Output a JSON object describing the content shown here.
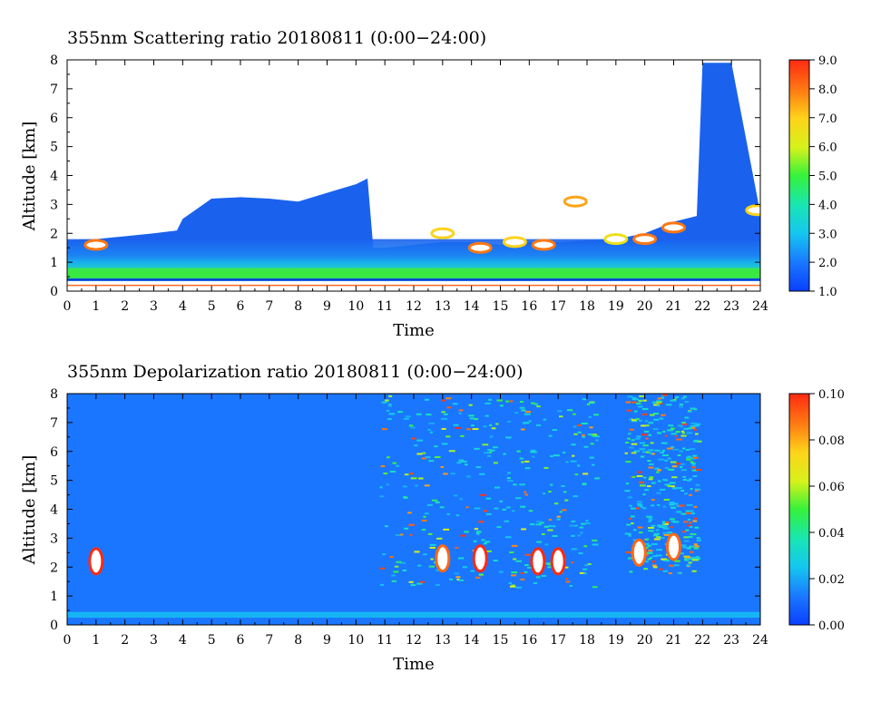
{
  "chart_data": [
    {
      "type": "heatmap",
      "title": "355nm Scattering ratio  20180811 (0:00−24:00)",
      "xlabel": "Time",
      "ylabel": "Altitude [km]",
      "xlim": [
        0,
        24
      ],
      "ylim": [
        0,
        8
      ],
      "x_ticks": [
        "0",
        "1",
        "2",
        "3",
        "4",
        "5",
        "6",
        "7",
        "8",
        "9",
        "10",
        "11",
        "12",
        "13",
        "14",
        "15",
        "16",
        "17",
        "18",
        "19",
        "20",
        "21",
        "22",
        "23",
        "24"
      ],
      "y_ticks": [
        "0",
        "1",
        "2",
        "3",
        "4",
        "5",
        "6",
        "7",
        "8"
      ],
      "colorbar": {
        "min": 1.0,
        "max": 9.0,
        "ticks": [
          "1.0",
          "2.0",
          "3.0",
          "4.0",
          "5.0",
          "6.0",
          "7.0",
          "8.0",
          "9.0"
        ]
      },
      "features": {
        "boundary_layer_top_km": [
          [
            0,
            1.75
          ],
          [
            1,
            1.8
          ],
          [
            2,
            1.9
          ],
          [
            3,
            2.0
          ],
          [
            3.8,
            2.1
          ],
          [
            4,
            2.5
          ],
          [
            5,
            3.2
          ],
          [
            6,
            3.25
          ],
          [
            7,
            3.2
          ],
          [
            8,
            3.1
          ],
          [
            9,
            3.4
          ],
          [
            10,
            3.7
          ],
          [
            10.4,
            3.9
          ],
          [
            10.6,
            1.5
          ],
          [
            11,
            1.5
          ],
          [
            12,
            1.6
          ],
          [
            13,
            1.7
          ],
          [
            14,
            1.7
          ],
          [
            15,
            1.6
          ],
          [
            16,
            1.7
          ],
          [
            17,
            1.7
          ],
          [
            18,
            1.75
          ],
          [
            19,
            1.8
          ],
          [
            20,
            2.0
          ],
          [
            21,
            2.4
          ],
          [
            21.8,
            2.6
          ],
          [
            22,
            7.9
          ],
          [
            23,
            7.9
          ],
          [
            24,
            2.7
          ]
        ],
        "strong_layer_altitude_km": [
          0.45,
          0.8
        ],
        "surface_line_km": 0.2,
        "cloud_patches": [
          {
            "t": 1.0,
            "z": 1.6,
            "value": 8.0
          },
          {
            "t": 13.0,
            "z": 2.0,
            "value": 7.0
          },
          {
            "t": 14.3,
            "z": 1.5,
            "value": 8.0
          },
          {
            "t": 15.5,
            "z": 1.7,
            "value": 7.0
          },
          {
            "t": 16.5,
            "z": 1.6,
            "value": 8.0
          },
          {
            "t": 17.6,
            "z": 3.1,
            "value": 7.5
          },
          {
            "t": 19.0,
            "z": 1.8,
            "value": 6.5
          },
          {
            "t": 20.0,
            "z": 1.8,
            "value": 8.0
          },
          {
            "t": 21.0,
            "z": 2.2,
            "value": 8.0
          },
          {
            "t": 23.9,
            "z": 2.8,
            "value": 7.0
          }
        ]
      }
    },
    {
      "type": "heatmap",
      "title": "355nm Depolarization ratio  20180811 (0:00−24:00)",
      "xlabel": "Time",
      "ylabel": "Altitude [km]",
      "xlim": [
        0,
        24
      ],
      "ylim": [
        0,
        8
      ],
      "x_ticks": [
        "0",
        "1",
        "2",
        "3",
        "4",
        "5",
        "6",
        "7",
        "8",
        "9",
        "10",
        "11",
        "12",
        "13",
        "14",
        "15",
        "16",
        "17",
        "18",
        "19",
        "20",
        "21",
        "22",
        "23",
        "24"
      ],
      "y_ticks": [
        "0",
        "1",
        "2",
        "3",
        "4",
        "5",
        "6",
        "7",
        "8"
      ],
      "colorbar": {
        "min": 0.0,
        "max": 0.1,
        "ticks": [
          "0.00",
          "0.02",
          "0.04",
          "0.06",
          "0.08",
          "0.10"
        ]
      },
      "features": {
        "background_value": 0.012,
        "high_depol_region": {
          "t_start": 10.8,
          "t_end": 18.3,
          "z_start": 1.3,
          "z_end": 8.0
        },
        "high_depol_region_2": {
          "t_start": 19.3,
          "t_end": 21.8,
          "z_start": 1.8,
          "z_end": 8.0
        },
        "dense_patches": [
          {
            "t": 1.0,
            "z": 2.2,
            "value": 0.1
          },
          {
            "t": 13.0,
            "z": 2.3,
            "value": 0.09
          },
          {
            "t": 14.3,
            "z": 2.3,
            "value": 0.1
          },
          {
            "t": 16.3,
            "z": 2.2,
            "value": 0.1
          },
          {
            "t": 17.0,
            "z": 2.2,
            "value": 0.1
          },
          {
            "t": 19.8,
            "z": 2.5,
            "value": 0.09
          },
          {
            "t": 21.0,
            "z": 2.7,
            "value": 0.09
          }
        ]
      }
    }
  ]
}
